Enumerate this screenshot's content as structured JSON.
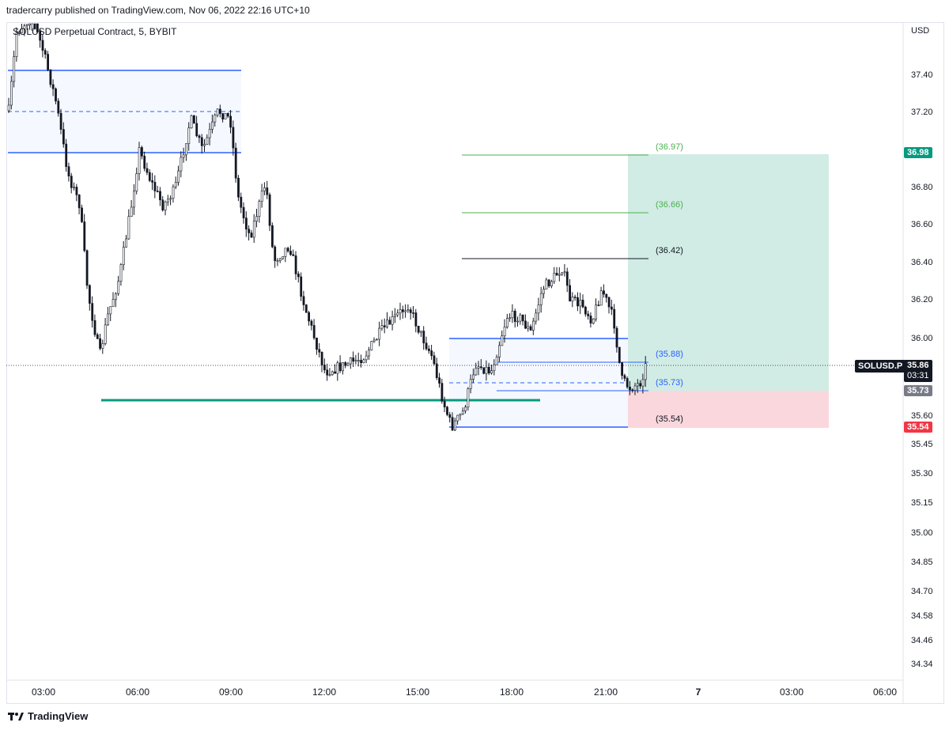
{
  "header": {
    "publisher_line": "tradercarry published on TradingView.com, Nov 06, 2022 22:16 UTC+10"
  },
  "chart": {
    "symbol_line": "SOLUSD Perpetual Contract, 5, BYBIT",
    "currency": "USD",
    "y_ticks": [
      "37.40",
      "37.20",
      "36.80",
      "36.60",
      "36.40",
      "36.20",
      "36.00",
      "35.60",
      "35.45",
      "35.30",
      "35.15",
      "35.00",
      "34.85",
      "34.70",
      "34.58",
      "34.46",
      "34.34"
    ],
    "x_ticks": [
      "03:00",
      "06:00",
      "09:00",
      "12:00",
      "15:00",
      "18:00",
      "21:00",
      "7",
      "03:00",
      "06:00"
    ],
    "price_tags": {
      "target": "36.98",
      "current": "35.86",
      "countdown": "03:31",
      "entry": "35.73",
      "stop": "35.54"
    },
    "symbol_tag": "SOLUSD.P",
    "levels": {
      "tp2": "(36.97)",
      "tp1": "(36.66)",
      "high": "(36.42)",
      "upper": "(35.88)",
      "entry": "(35.73)",
      "stop": "(35.54)"
    },
    "colors": {
      "bull": "#ffffff",
      "bear": "#131722",
      "zone_line": "#2962ff",
      "support": "#089981",
      "profit_zone": "#d1ece4",
      "loss_zone": "#fad7dc",
      "target_tag": "#089981",
      "stop_tag": "#f23645",
      "entry_tag": "#787b86"
    }
  },
  "footer": {
    "brand": "TradingView"
  }
}
